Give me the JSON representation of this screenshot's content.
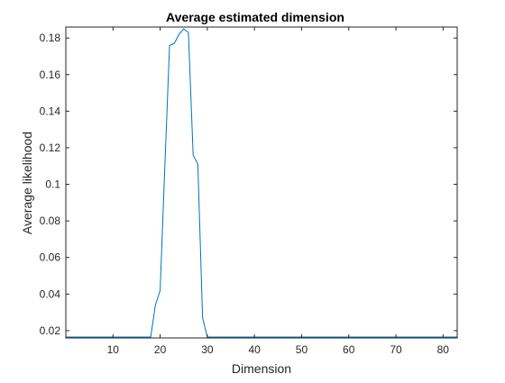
{
  "chart_data": {
    "type": "line",
    "title": "Average estimated dimension",
    "xlabel": "Dimension",
    "ylabel": "Average likelihood",
    "xlim": [
      0,
      83
    ],
    "ylim": [
      0.016,
      0.186
    ],
    "xticks": [
      10,
      20,
      30,
      40,
      50,
      60,
      70,
      80
    ],
    "yticks": [
      0.02,
      0.04,
      0.06,
      0.08,
      0.1,
      0.12,
      0.14,
      0.16,
      0.18
    ],
    "ytick_labels": [
      "0.02",
      "0.04",
      "0.06",
      "0.08",
      "0.1",
      "0.12",
      "0.14",
      "0.16",
      "0.18"
    ],
    "grid": false,
    "box": true,
    "series": [
      {
        "color": "#0072BD",
        "x": [
          0,
          18,
          19,
          20,
          21,
          22,
          23,
          24,
          25,
          26,
          27,
          28,
          29,
          30,
          31,
          83
        ],
        "y": [
          0.0165,
          0.0165,
          0.034,
          0.042,
          0.11,
          0.176,
          0.177,
          0.182,
          0.185,
          0.183,
          0.116,
          0.111,
          0.027,
          0.0165,
          0.0165,
          0.0165
        ]
      }
    ]
  }
}
